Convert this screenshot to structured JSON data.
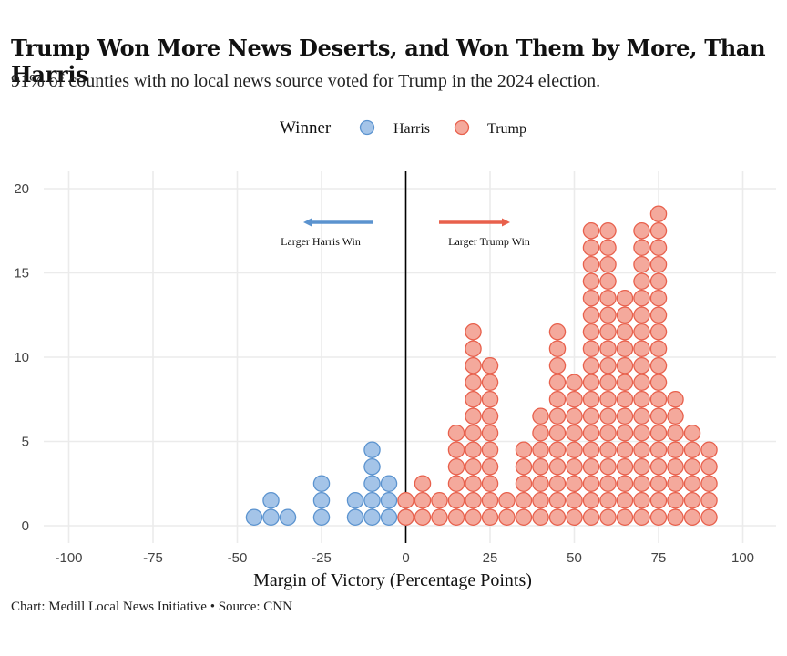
{
  "title": "Trump Won More News Deserts, and Won Them by More, Than Harris",
  "subtitle": "91% of counties with no local news source voted for Trump in the 2024 election.",
  "caption": "Chart: Medill Local News Initiative • Source: CNN",
  "colors": {
    "harris_fill": "#a4c4e8",
    "harris_stroke": "#5b93cf",
    "trump_fill": "#f4a99c",
    "trump_stroke": "#e8604c",
    "harris_arrow": "#5b93cf",
    "trump_arrow": "#e8604c",
    "grid": "#ebebeb",
    "zero_line": "#000000"
  },
  "chart_data": {
    "type": "dotplot",
    "xlabel": "Margin of Victory (Percentage Points)",
    "ylabel": "",
    "xlim": [
      -100,
      100
    ],
    "ylim": [
      0,
      20
    ],
    "x_ticks": [
      "-100",
      "-75",
      "-50",
      "-25",
      "0",
      "25",
      "50",
      "75",
      "100"
    ],
    "y_ticks": [
      "0",
      "5",
      "10",
      "15",
      "20"
    ],
    "grid": true,
    "legend": {
      "title": "Winner",
      "position": "top-center",
      "entries": [
        "Harris",
        "Trump"
      ]
    },
    "annotations": [
      {
        "text": "Larger Harris Win",
        "direction": "left",
        "series": "Harris"
      },
      {
        "text": "Larger Trump Win",
        "direction": "right",
        "series": "Trump"
      }
    ],
    "series": [
      {
        "name": "Harris",
        "bin_centers": [
          -45,
          -40,
          -35,
          -25,
          -15,
          -10,
          -5,
          0
        ],
        "counts": [
          1,
          2,
          1,
          3,
          2,
          5,
          3,
          1
        ]
      },
      {
        "name": "Trump",
        "bin_centers": [
          0,
          5,
          10,
          15,
          20,
          25,
          30,
          35,
          40,
          45,
          50,
          55,
          60,
          65,
          70,
          75,
          80,
          85,
          90
        ],
        "counts": [
          2,
          3,
          2,
          6,
          12,
          10,
          2,
          5,
          7,
          12,
          9,
          18,
          18,
          14,
          18,
          19,
          8,
          6,
          5
        ]
      }
    ]
  }
}
